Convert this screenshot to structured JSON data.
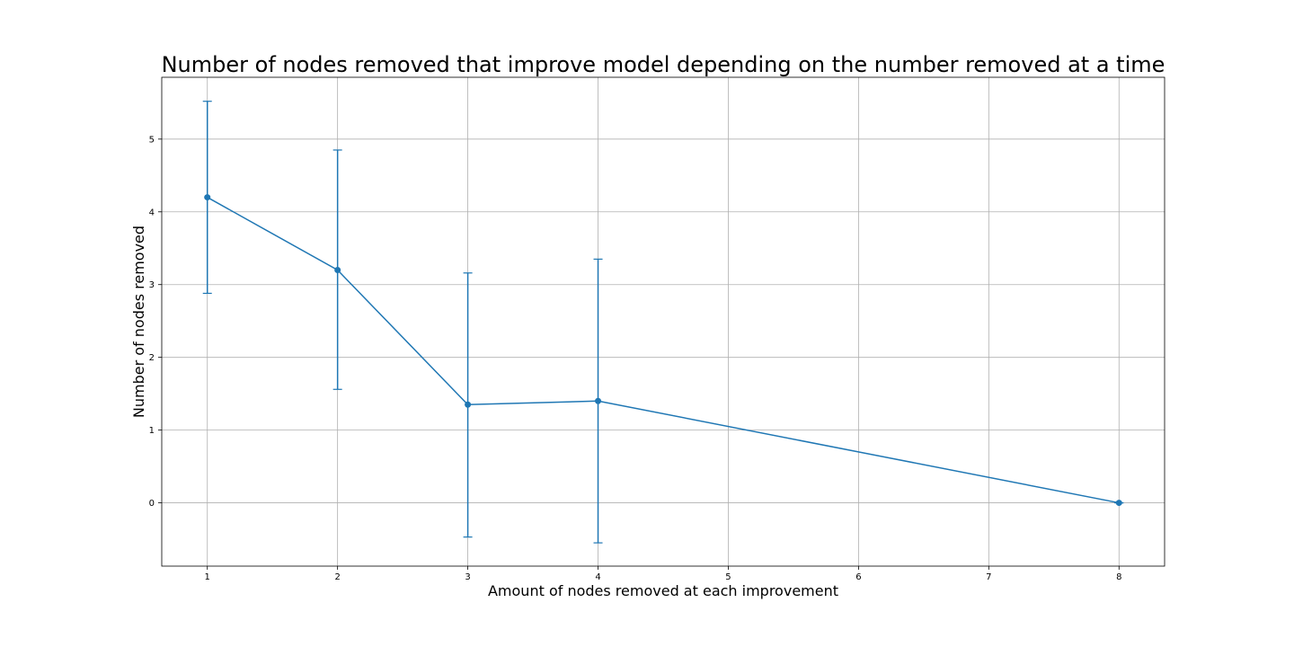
{
  "chart_data": {
    "type": "line",
    "title": "Number of nodes removed that improve model depending on the number removed at a time",
    "xlabel": "Amount of nodes removed at each improvement",
    "ylabel": "Number of nodes removed",
    "xlim": [
      0.65,
      8.35
    ],
    "ylim": [
      -0.87,
      5.85
    ],
    "xticks": [
      1,
      2,
      3,
      4,
      5,
      6,
      7,
      8
    ],
    "yticks": [
      0,
      1,
      2,
      3,
      4,
      5
    ],
    "grid": true,
    "color": "#1f77b4",
    "series": [
      {
        "x": [
          1,
          2,
          3,
          4,
          8
        ],
        "y": [
          4.2,
          3.2,
          1.35,
          1.4,
          0
        ],
        "yerr_low": [
          2.88,
          1.56,
          -0.47,
          -0.55,
          0
        ],
        "yerr_high": [
          5.52,
          4.85,
          3.16,
          3.35,
          0
        ]
      }
    ]
  }
}
